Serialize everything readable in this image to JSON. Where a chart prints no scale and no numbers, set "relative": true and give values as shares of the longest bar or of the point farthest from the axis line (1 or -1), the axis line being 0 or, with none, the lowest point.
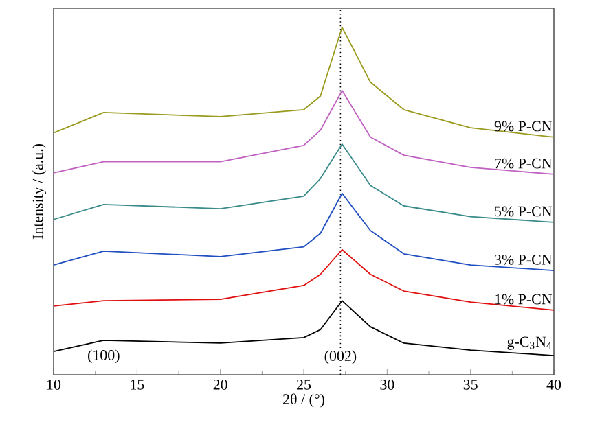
{
  "chart_data": {
    "type": "line",
    "relative": true,
    "xlabel": "2θ / (°)",
    "ylabel": "Intensity / (a.u.)",
    "xlim": [
      10,
      40
    ],
    "xticks": [
      10,
      15,
      20,
      25,
      30,
      35,
      40
    ],
    "line_style": "solid",
    "x": [
      10,
      13,
      20,
      25,
      26,
      27.3,
      29,
      31,
      35,
      40
    ],
    "series": [
      {
        "name": "g-C$_{3}$N$_{4}$",
        "color": "#000000",
        "values": [
          0.067,
          0.099,
          0.091,
          0.107,
          0.13,
          0.213,
          0.138,
          0.091,
          0.071,
          0.055
        ]
      },
      {
        "name": "1% P-CN",
        "color": "#e01010",
        "values": [
          0.198,
          0.213,
          0.217,
          0.257,
          0.289,
          0.36,
          0.289,
          0.241,
          0.209,
          0.186
        ]
      },
      {
        "name": "3% P-CN",
        "color": "#1f4fc0",
        "values": [
          0.316,
          0.356,
          0.34,
          0.368,
          0.407,
          0.522,
          0.415,
          0.348,
          0.316,
          0.3
        ]
      },
      {
        "name": "5% P-CN",
        "color": "#3a8a8a",
        "values": [
          0.447,
          0.49,
          0.478,
          0.514,
          0.565,
          0.664,
          0.545,
          0.486,
          0.455,
          0.439
        ]
      },
      {
        "name": "7% P-CN",
        "color": "#c060c0",
        "values": [
          0.581,
          0.613,
          0.613,
          0.66,
          0.704,
          0.818,
          0.684,
          0.632,
          0.597,
          0.577
        ]
      },
      {
        "name": "9% P-CN",
        "color": "#9a9a1e",
        "values": [
          0.696,
          0.755,
          0.743,
          0.763,
          0.802,
          1.0,
          0.842,
          0.763,
          0.711,
          0.684
        ]
      }
    ],
    "ref_lines": [
      {
        "axis": "x",
        "value": 27.2,
        "line_style": "dotted",
        "color": "#000000"
      }
    ],
    "annotations": [
      "(100)",
      {
        "text": "(002)",
        "x": 27.2,
        "y": 0.04
      }
    ]
  }
}
